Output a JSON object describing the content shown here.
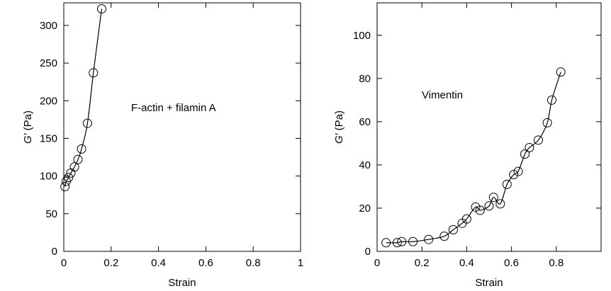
{
  "chart_data": [
    {
      "type": "scatter",
      "title": "",
      "annotation": "F-actin + filamin A",
      "xlabel": "Strain",
      "ylabel_italic": "G′",
      "ylabel_unit": " (Pa)",
      "xlim": [
        0,
        1
      ],
      "ylim": [
        0,
        330
      ],
      "xticks": [
        0,
        0.2,
        0.4,
        0.6,
        0.8,
        1
      ],
      "xtick_labels": [
        "0",
        "0.2",
        "0.4",
        "0.6",
        "0.8",
        "1"
      ],
      "yticks": [
        0,
        50,
        100,
        150,
        200,
        250,
        300
      ],
      "ytick_labels": [
        "0",
        "50",
        "100",
        "150",
        "200",
        "250",
        "300"
      ],
      "right_ticks": true,
      "grid": false,
      "series": [
        {
          "marker": "open-circle",
          "fit_curve": true,
          "x": [
            0.005,
            0.01,
            0.02,
            0.03,
            0.045,
            0.06,
            0.075,
            0.1,
            0.125,
            0.16
          ],
          "y": [
            86,
            93,
            98,
            104,
            112,
            122,
            136,
            170,
            237,
            322
          ]
        }
      ]
    },
    {
      "type": "scatter",
      "title": "",
      "annotation": "Vimentin",
      "xlabel": "Strain",
      "ylabel_italic": "G′",
      "ylabel_unit": " (Pa)",
      "xlim": [
        0,
        1
      ],
      "ylim": [
        0,
        115
      ],
      "xticks": [
        0,
        0.2,
        0.4,
        0.6,
        0.8
      ],
      "xtick_labels": [
        "0",
        "0.2",
        "0.4",
        "0.6",
        "0.8"
      ],
      "yticks": [
        0,
        20,
        40,
        60,
        80,
        100
      ],
      "ytick_labels": [
        "0",
        "20",
        "40",
        "60",
        "80",
        "100"
      ],
      "right_ticks": true,
      "grid": false,
      "series": [
        {
          "marker": "open-circle",
          "fit_curve": true,
          "x": [
            0.04,
            0.09,
            0.11,
            0.16,
            0.23,
            0.3,
            0.34,
            0.38,
            0.4,
            0.44,
            0.46,
            0.5,
            0.52,
            0.55,
            0.58,
            0.61,
            0.63,
            0.66,
            0.68,
            0.72,
            0.76,
            0.78,
            0.82
          ],
          "y": [
            4,
            4,
            4.5,
            4.5,
            5.5,
            7,
            10,
            13,
            15,
            20.5,
            19,
            21,
            25,
            22,
            31,
            35.5,
            37,
            45,
            48,
            51.5,
            59.5,
            70,
            83
          ]
        }
      ]
    }
  ]
}
